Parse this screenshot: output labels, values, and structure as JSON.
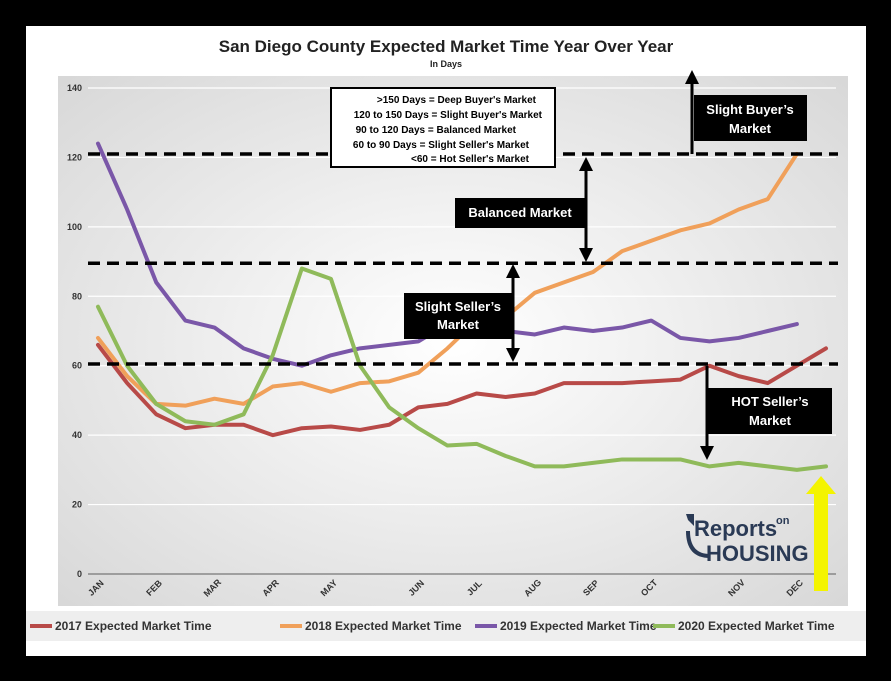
{
  "chart_data": {
    "type": "line",
    "title": "San Diego County Expected Market Time Year Over Year",
    "subtitle": "In Days",
    "ylim": [
      0,
      140
    ],
    "yticks": [
      0,
      20,
      40,
      60,
      80,
      100,
      120,
      140
    ],
    "month_labels": [
      "JAN",
      "FEB",
      "MAR",
      "APR",
      "MAY",
      "JUN",
      "JUL",
      "AUG",
      "SEP",
      "OCT",
      "NOV",
      "DEC"
    ],
    "month_positions": [
      0,
      2,
      4,
      6,
      8,
      11,
      13,
      15,
      17,
      19,
      22,
      24
    ],
    "x_max": 25,
    "series": [
      {
        "name": "2017 Expected Market Time",
        "color": "#b84a48",
        "values": [
          66,
          55,
          46,
          42,
          43,
          43,
          40,
          42,
          42.5,
          41.5,
          43,
          48,
          49,
          52,
          51,
          52,
          55,
          55,
          55,
          55.5,
          56,
          60,
          57,
          55,
          60,
          65
        ]
      },
      {
        "name": "2018 Expected Market Time",
        "color": "#f0a05a",
        "values": [
          68,
          57,
          49,
          48.5,
          50.5,
          49,
          54,
          55,
          52.5,
          55,
          55.5,
          58,
          65,
          73,
          74,
          81,
          84,
          87,
          93,
          96,
          99,
          101,
          105,
          108,
          121
        ]
      },
      {
        "name": "2019 Expected Market Time",
        "color": "#7a57a8",
        "values": [
          124,
          105,
          84,
          73,
          71,
          65,
          62,
          60,
          63,
          65,
          66,
          67,
          72,
          72,
          70,
          69,
          71,
          70,
          71,
          73,
          68,
          67,
          68,
          70,
          72
        ]
      },
      {
        "name": "2020 Expected Market Time",
        "color": "#8fba5a",
        "values": [
          77,
          60,
          49,
          44,
          43,
          46,
          63,
          88,
          85,
          60,
          48,
          42,
          37,
          37.5,
          34,
          31,
          31,
          32,
          33,
          33,
          33,
          31,
          32,
          31,
          30,
          31
        ]
      }
    ],
    "thresholds": [
      121,
      89.5,
      60.5
    ]
  },
  "key_box": {
    "lines": [
      ">150 Days  =  Deep Buyer's Market",
      "120 to 150 Days  =  Slight Buyer's Market",
      "90 to 120 Days  =  Balanced Market",
      "60 to 90 Days  =  Slight Seller's Market",
      "<60  =  Hot Seller's Market"
    ]
  },
  "annotations": {
    "slight_buyer": [
      "Slight Buyer’s",
      "Market"
    ],
    "balanced": "Balanced Market",
    "slight_seller": [
      "Slight Seller’s",
      "Market"
    ],
    "hot_seller": [
      "HOT Seller’s",
      "Market"
    ]
  },
  "logo": {
    "line1": "Reports",
    "line1b": "on",
    "line2": "HOUSING"
  },
  "colors": {
    "arrow_yellow": "#f4f400",
    "box_bg": "#000000"
  }
}
